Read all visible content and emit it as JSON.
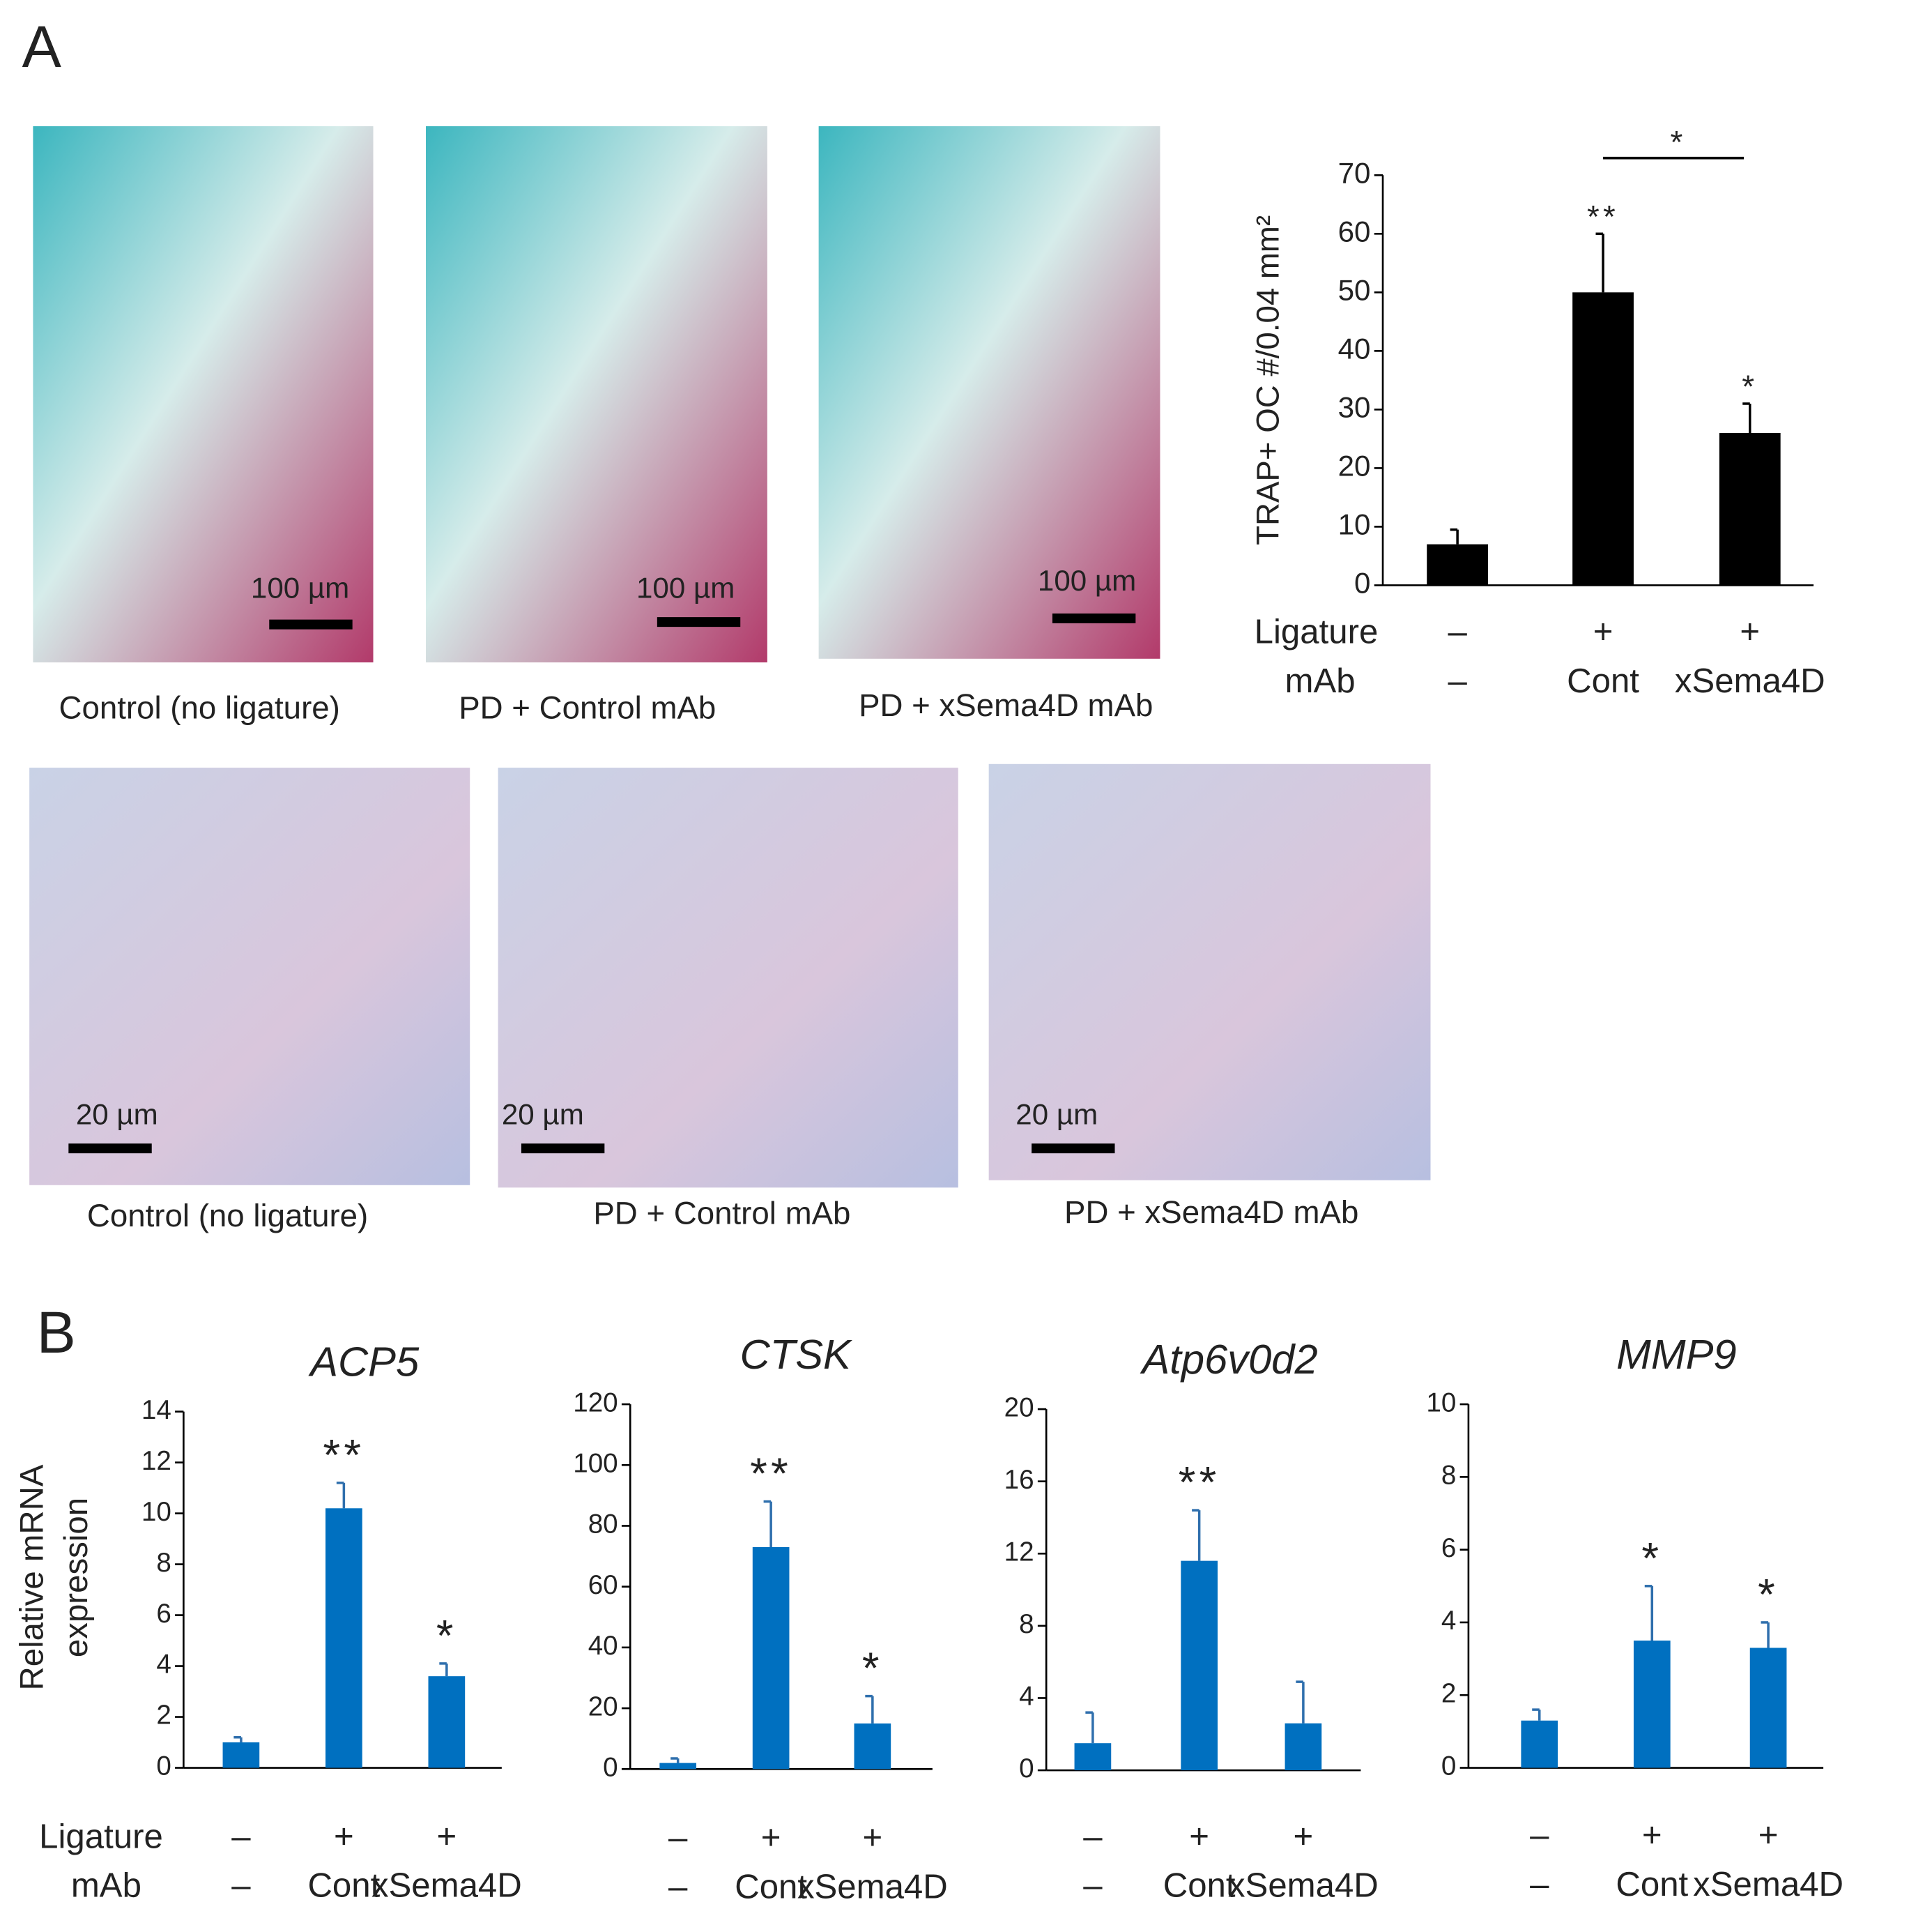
{
  "figure": {
    "panel_labels": [
      "A",
      "B"
    ],
    "micrographs": [
      {
        "caption": "Control (no ligature)",
        "scale": "100 µm"
      },
      {
        "caption": "PD + Control mAb",
        "scale": "100 µm"
      },
      {
        "caption": "PD + xSema4D mAb",
        "scale": "100 µm"
      },
      {
        "caption": "Control (no ligature)",
        "scale": "20 µm"
      },
      {
        "caption": "PD + Control mAb",
        "scale": "20 µm"
      },
      {
        "caption": "PD + xSema4D mAb",
        "scale": "20 µm"
      }
    ]
  },
  "chart_data": [
    {
      "type": "bar",
      "ylabel": "TRAP+ OC #/0.04 mm²",
      "color": "#000000",
      "values": [
        7,
        50,
        26
      ],
      "errors": [
        2.5,
        10,
        5
      ],
      "annotations": [
        null,
        "**",
        "*"
      ],
      "bracket": "*",
      "category_rows": [
        {
          "name": "Ligature",
          "labels": [
            "–",
            "+",
            "+"
          ]
        },
        {
          "name": "mAb",
          "labels": [
            "–",
            "Cont",
            "xSema4D"
          ]
        }
      ],
      "ylim": [
        0,
        70
      ],
      "yticks": [
        0,
        10,
        20,
        30,
        40,
        50,
        60,
        70
      ]
    },
    {
      "type": "bar",
      "title": "ACP5",
      "ylabel": [
        "Relative mRNA",
        "expression"
      ],
      "color": "#0070c0",
      "values": [
        1.0,
        10.2,
        3.6
      ],
      "errors": [
        0.2,
        1.0,
        0.5
      ],
      "annotations": [
        null,
        "**",
        "*"
      ],
      "category_rows": [
        {
          "name": "Ligature",
          "labels": [
            "–",
            "+",
            "+"
          ]
        },
        {
          "name": "mAb",
          "labels": [
            "–",
            "Cont",
            "xSema4D"
          ]
        }
      ],
      "ylim": [
        0,
        14
      ],
      "yticks": [
        0,
        2,
        4,
        6,
        8,
        10,
        12,
        14
      ]
    },
    {
      "type": "bar",
      "title": "CTSK",
      "color": "#0070c0",
      "values": [
        2,
        73,
        15
      ],
      "errors": [
        1.5,
        15,
        9
      ],
      "annotations": [
        null,
        "**",
        "*"
      ],
      "category_rows": [
        {
          "labels": [
            "–",
            "+",
            "+"
          ]
        },
        {
          "labels": [
            "–",
            "Cont",
            "xSema4D"
          ]
        }
      ],
      "ylim": [
        0,
        120
      ],
      "yticks": [
        0,
        20,
        40,
        60,
        80,
        100,
        120
      ]
    },
    {
      "type": "bar",
      "title": "Atp6v0d2",
      "color": "#0070c0",
      "values": [
        1.5,
        11.6,
        2.6
      ],
      "errors": [
        1.7,
        2.8,
        2.3
      ],
      "annotations": [
        null,
        "**",
        null
      ],
      "category_rows": [
        {
          "labels": [
            "–",
            "+",
            "+"
          ]
        },
        {
          "labels": [
            "–",
            "Cont",
            "xSema4D"
          ]
        }
      ],
      "ylim": [
        0,
        20
      ],
      "yticks": [
        0,
        4,
        8,
        12,
        16,
        20
      ]
    },
    {
      "type": "bar",
      "title": "MMP9",
      "color": "#0070c0",
      "values": [
        1.3,
        3.5,
        3.3
      ],
      "errors": [
        0.3,
        1.5,
        0.7
      ],
      "annotations": [
        null,
        "*",
        "*"
      ],
      "category_rows": [
        {
          "labels": [
            "–",
            "+",
            "+"
          ]
        },
        {
          "labels": [
            "–",
            "Cont",
            "xSema4D"
          ]
        }
      ],
      "ylim": [
        0,
        10
      ],
      "yticks": [
        0,
        2,
        4,
        6,
        8,
        10
      ]
    }
  ]
}
